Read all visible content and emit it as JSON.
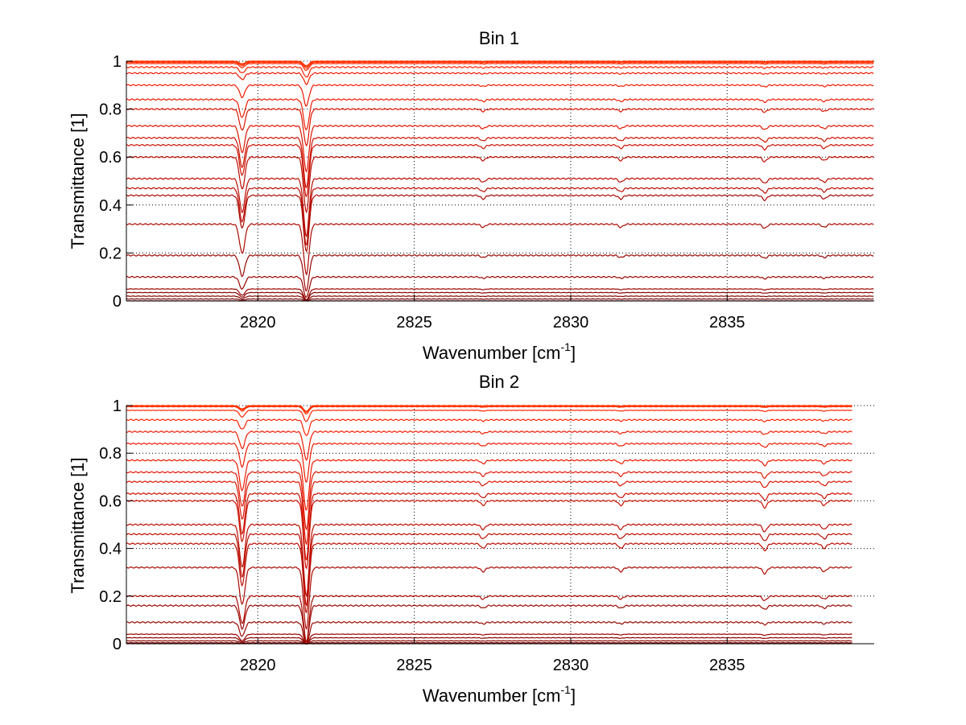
{
  "figure": {
    "background": "#ffffff"
  },
  "chart_data": [
    {
      "type": "line",
      "title": "Bin 1",
      "xlabel_main": "Wavenumber [cm",
      "xlabel_sup": "-1",
      "xlabel_tail": "]",
      "ylabel": "Transmittance [1]",
      "xlim": [
        2815.8,
        2839.7
      ],
      "ylim": [
        0,
        1
      ],
      "x_end": 2839.7,
      "xticks": [
        2820,
        2825,
        2830,
        2835
      ],
      "xtick_labels": [
        "2820",
        "2825",
        "2830",
        "2835"
      ],
      "yticks": [
        0,
        0.2,
        0.4,
        0.6,
        0.8,
        1
      ],
      "ytick_labels": [
        "0",
        "0.2",
        "0.4",
        "0.6",
        "0.8",
        "1"
      ],
      "grid": "dotted",
      "line_colors": [
        "#ff3300",
        "#ff2200",
        "#ee1a00",
        "#dd1500",
        "#cc1000",
        "#bb0c00",
        "#aa0800",
        "#990500",
        "#880300",
        "#770000"
      ],
      "absorption_lines": [
        {
          "x": 2819.5,
          "depth": 0.14,
          "width": 0.12
        },
        {
          "x": 2821.55,
          "depth": 0.24,
          "width": 0.12
        },
        {
          "x": 2827.2,
          "depth": 0.015,
          "width": 0.1
        },
        {
          "x": 2831.6,
          "depth": 0.015,
          "width": 0.1
        },
        {
          "x": 2836.2,
          "depth": 0.02,
          "width": 0.1
        },
        {
          "x": 2838.1,
          "depth": 0.015,
          "width": 0.1
        }
      ],
      "series_baselines": [
        1.0,
        0.998,
        0.995,
        0.99,
        0.975,
        0.95,
        0.9,
        0.84,
        0.8,
        0.73,
        0.68,
        0.65,
        0.6,
        0.51,
        0.47,
        0.44,
        0.32,
        0.19,
        0.1,
        0.05,
        0.035,
        0.02,
        0.008,
        0.0
      ]
    },
    {
      "type": "line",
      "title": "Bin 2",
      "xlabel_main": "Wavenumber [cm",
      "xlabel_sup": "-1",
      "xlabel_tail": "]",
      "ylabel": "Transmittance [1]",
      "xlim": [
        2815.8,
        2839.7
      ],
      "ylim": [
        0,
        1
      ],
      "x_end": 2839.0,
      "xticks": [
        2820,
        2825,
        2830,
        2835
      ],
      "xtick_labels": [
        "2820",
        "2825",
        "2830",
        "2835"
      ],
      "yticks": [
        0,
        0.2,
        0.4,
        0.6,
        0.8,
        1
      ],
      "ytick_labels": [
        "0",
        "0.2",
        "0.4",
        "0.6",
        "0.8",
        "1"
      ],
      "grid": "dotted",
      "line_colors": [
        "#ff3300",
        "#ff2200",
        "#ee1a00",
        "#dd1500",
        "#cc1000",
        "#bb0c00",
        "#aa0800",
        "#990500",
        "#880300",
        "#770000"
      ],
      "absorption_lines": [
        {
          "x": 2819.5,
          "depth": 0.18,
          "width": 0.12
        },
        {
          "x": 2821.55,
          "depth": 0.3,
          "width": 0.12
        },
        {
          "x": 2827.2,
          "depth": 0.02,
          "width": 0.1
        },
        {
          "x": 2831.6,
          "depth": 0.02,
          "width": 0.1
        },
        {
          "x": 2836.2,
          "depth": 0.03,
          "width": 0.1
        },
        {
          "x": 2838.1,
          "depth": 0.02,
          "width": 0.1
        }
      ],
      "series_baselines": [
        1.0,
        0.998,
        0.995,
        0.98,
        0.94,
        0.89,
        0.84,
        0.77,
        0.72,
        0.68,
        0.63,
        0.6,
        0.5,
        0.46,
        0.42,
        0.32,
        0.2,
        0.16,
        0.09,
        0.04,
        0.025,
        0.012,
        0.004,
        0.0
      ]
    }
  ]
}
